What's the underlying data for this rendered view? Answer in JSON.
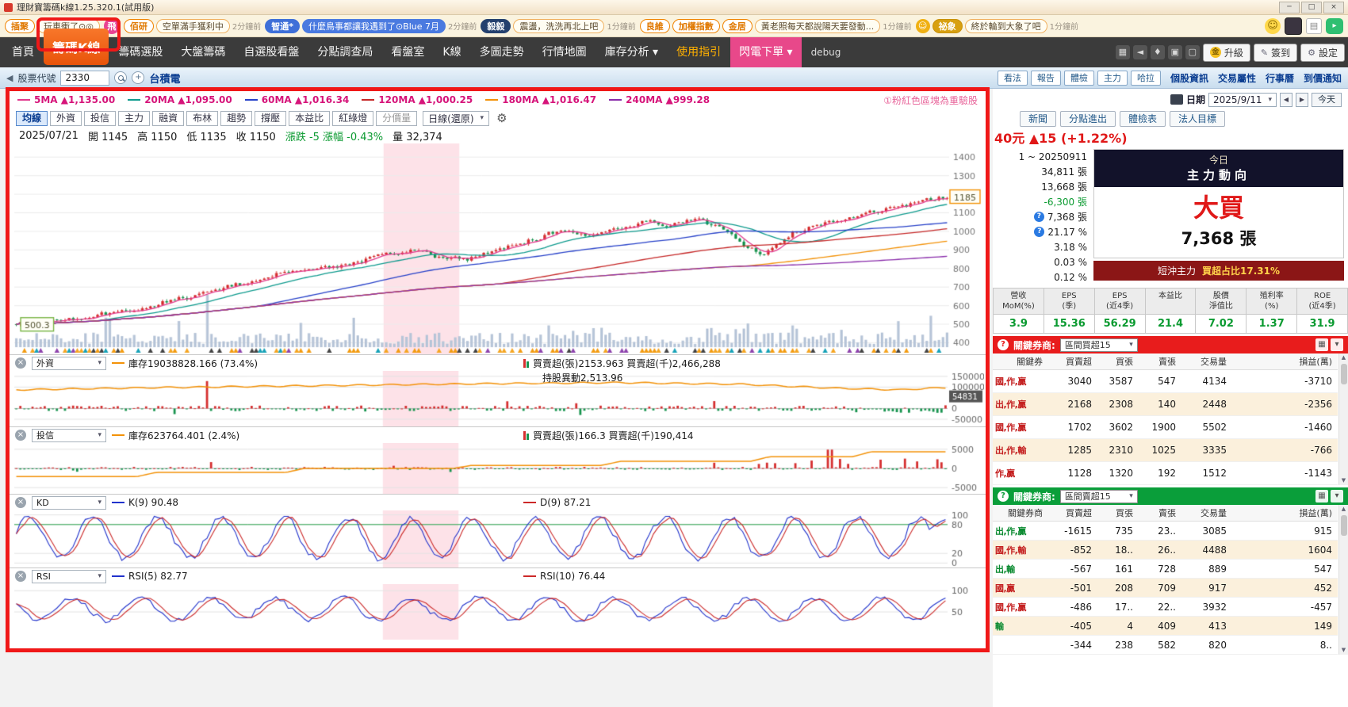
{
  "window": {
    "title": "理財寶籌碼k線1.25.320.1(試用版)",
    "minimize": "─",
    "maximize": "□",
    "close": "×"
  },
  "ticker": {
    "n1": {
      "tag": "插聚",
      "text": "玩車衝了⊙◎"
    },
    "n2": {
      "tag": "飛"
    },
    "n3": {
      "tag": "佰研",
      "text": "空單滿手獲利中",
      "time": "2分鐘前"
    },
    "n4": {
      "tag": "智通*",
      "text": "什麼鳥事都讓我遇到了⊙Blue 7月",
      "time": "2分鐘前"
    },
    "n5": {
      "tag": "毅毅",
      "text": "震盪，洗洗再北上吧",
      "time": "1分鐘前"
    },
    "n6": {
      "tag": "良維",
      "tag2": "加權指數",
      "tag3": "金居",
      "text": "黃老照每天都說陽天要發動...",
      "time": "1分鐘前"
    },
    "n7": {
      "icon": "☺",
      "tag": "祕象",
      "text": "終於輪到大象了吧",
      "time": "1分鐘前"
    }
  },
  "menu": {
    "items": [
      {
        "label": "首頁",
        "cls": ""
      },
      {
        "label": "籌碼K線",
        "cls": "active"
      },
      {
        "label": "籌碼選股",
        "cls": ""
      },
      {
        "label": "大盤籌碼",
        "cls": ""
      },
      {
        "label": "自選股看盤",
        "cls": ""
      },
      {
        "label": "分點調查局",
        "cls": ""
      },
      {
        "label": "看盤室",
        "cls": ""
      },
      {
        "label": "K線",
        "cls": ""
      },
      {
        "label": "多圖走勢",
        "cls": ""
      },
      {
        "label": "行情地圖",
        "cls": ""
      },
      {
        "label": "庫存分析 ▾",
        "cls": ""
      },
      {
        "label": "使用指引",
        "cls": "guide"
      },
      {
        "label": "閃電下單 ▾",
        "cls": "flash"
      },
      {
        "label": "debug",
        "cls": "debug"
      }
    ],
    "coin": "金",
    "upgrade": "升級",
    "checkin": "簽到",
    "settings": "設定"
  },
  "subbar": {
    "stock_label": "股票代號",
    "stock_code": "2330",
    "stock_name": "台積電",
    "buttons": [
      "看法",
      "報告",
      "體檢",
      "主力",
      "哈拉"
    ],
    "links": [
      "個股資訊",
      "交易屬性",
      "行事曆",
      "到價通知"
    ]
  },
  "chart": {
    "ma_legend": [
      {
        "label": "5MA ▲1,135.00",
        "line": "#e23a8e"
      },
      {
        "label": "20MA ▲1,095.00",
        "line": "#0f9b8e"
      },
      {
        "label": "60MA ▲1,016.34",
        "line": "#2741c9"
      },
      {
        "label": "120MA ▲1,000.25",
        "line": "#c62828"
      },
      {
        "label": "180MA ▲1,016.47",
        "line": "#f39208"
      },
      {
        "label": "240MA ▲999.28",
        "line": "#8a2dab"
      }
    ],
    "note": "①粉紅色區塊為重驗股",
    "tabs": [
      {
        "label": "均線",
        "cls": "active"
      },
      {
        "label": "外資",
        "cls": ""
      },
      {
        "label": "投信",
        "cls": ""
      },
      {
        "label": "主力",
        "cls": ""
      },
      {
        "label": "融資",
        "cls": ""
      },
      {
        "label": "布林",
        "cls": ""
      },
      {
        "label": "趨勢",
        "cls": ""
      },
      {
        "label": "撐壓",
        "cls": ""
      },
      {
        "label": "本益比",
        "cls": ""
      },
      {
        "label": "紅綠燈",
        "cls": ""
      },
      {
        "label": "分價量",
        "cls": "dim"
      }
    ],
    "period": "日線(還原)",
    "ohlc": {
      "date": "2025/07/21",
      "open": "開 1145",
      "high": "高 1150",
      "low": "低 1135",
      "close": "收 1150",
      "change": "漲跌 -5 漲幅 -0.43%",
      "volume": "量 32,374"
    },
    "y_ticks": [
      1400,
      1300,
      1200,
      1100,
      1000,
      900,
      800,
      700,
      600,
      500,
      400
    ],
    "price_tag": "1185",
    "start_tag": "500.3",
    "band": [
      0.395,
      0.476
    ],
    "price_path": [
      [
        0,
        500
      ],
      [
        0.04,
        520
      ],
      [
        0.08,
        545
      ],
      [
        0.12,
        575
      ],
      [
        0.16,
        620
      ],
      [
        0.2,
        665
      ],
      [
        0.24,
        720
      ],
      [
        0.28,
        770
      ],
      [
        0.32,
        800
      ],
      [
        0.36,
        830
      ],
      [
        0.4,
        880
      ],
      [
        0.43,
        905
      ],
      [
        0.45,
        860
      ],
      [
        0.48,
        845
      ],
      [
        0.52,
        905
      ],
      [
        0.55,
        955
      ],
      [
        0.58,
        1000
      ],
      [
        0.61,
        975
      ],
      [
        0.64,
        1020
      ],
      [
        0.67,
        1050
      ],
      [
        0.7,
        1035
      ],
      [
        0.73,
        1060
      ],
      [
        0.76,
        1000
      ],
      [
        0.78,
        905
      ],
      [
        0.8,
        880
      ],
      [
        0.83,
        990
      ],
      [
        0.86,
        1040
      ],
      [
        0.89,
        1075
      ],
      [
        0.92,
        1105
      ],
      [
        0.95,
        1140
      ],
      [
        0.98,
        1170
      ],
      [
        1,
        1185
      ]
    ],
    "panels": {
      "foreign": {
        "name": "外資",
        "inv": "庫存19038828.166 (73.4%)",
        "net": "買賣超(張)2153.963 買賣超(千)2,466,288",
        "shift": "持股異動2,513.96",
        "ticks": [
          [
            "150000",
            150000
          ],
          [
            "100000",
            100000
          ],
          [
            "0",
            0
          ],
          [
            "-50000",
            -50000
          ]
        ],
        "tag": "54831",
        "tag_value": 54831
      },
      "trust": {
        "name": "投信",
        "inv": "庫存623764.401 (2.4%)",
        "net": "買賣超(張)166.3 買賣超(千)190,414",
        "ticks": [
          [
            "5000",
            5000
          ],
          [
            "0",
            0
          ],
          [
            "-5000",
            -5000
          ]
        ]
      },
      "kd": {
        "name": "KD",
        "k": "K(9) 90.48",
        "d": "D(9) 87.21",
        "ticks": [
          [
            "100",
            100
          ],
          [
            "80",
            80
          ],
          [
            "20",
            20
          ],
          [
            "0",
            0
          ]
        ]
      },
      "rsi": {
        "name": "RSI",
        "r1": "RSI(5) 82.77",
        "r2": "RSI(10) 76.44",
        "ticks": [
          [
            "100",
            100
          ],
          [
            "50",
            50
          ]
        ]
      }
    }
  },
  "sidebar": {
    "date_label": "日期",
    "date_value": "2025/9/11",
    "today": "今天",
    "tabs": [
      "新聞",
      "分點進出",
      "體檢表",
      "法人目標"
    ],
    "price": "40元 ▲15 (+1.22%)",
    "info_rows": [
      {
        "value": "1 ~ 20250911",
        "cls": ""
      },
      {
        "value": "34,811 張",
        "cls": ""
      },
      {
        "value": "13,668 張",
        "cls": ""
      },
      {
        "value": "-6,300 張",
        "cls": "green"
      },
      {
        "q": "?",
        "value": "7,368 張",
        "cls": ""
      },
      {
        "q": "?",
        "value": "21.17 %",
        "cls": ""
      },
      {
        "value": "3.18 %",
        "cls": ""
      },
      {
        "value": "0.03 %",
        "cls": ""
      },
      {
        "value": "0.12 %",
        "cls": ""
      }
    ],
    "today_box": {
      "line1": "今日",
      "line2": "主力動向",
      "verdict": "大買",
      "amount": "7,368 張",
      "footer_label": "短沖主力",
      "footer_value": "買超占比17.31%"
    },
    "fin": {
      "cols": [
        {
          "label": "營收\nMoM(%)",
          "value": "3.9"
        },
        {
          "label": "EPS\n(季)",
          "value": "15.36"
        },
        {
          "label": "EPS\n(近4季)",
          "value": "56.29"
        },
        {
          "label": "本益比",
          "value": "21.4"
        },
        {
          "label": "股價\n淨值比",
          "value": "7.02"
        },
        {
          "label": "殖利率\n(%)",
          "value": "1.37"
        },
        {
          "label": "ROE\n(近4季)",
          "value": "31.9"
        }
      ]
    },
    "buy_block": {
      "q": "?",
      "label": "關鍵券商:",
      "select": "區間買超15",
      "headers": [
        "關鍵券",
        "買賣超",
        "買張",
        "賣張",
        "交易量",
        "損益(萬)"
      ],
      "rows": [
        {
          "name": "國,作,贏",
          "nc": "#c42020",
          "v1": "3040",
          "v2": "3587",
          "v3": "547",
          "v4": "4134",
          "v5": "-3710"
        },
        {
          "name": "出,作,贏",
          "nc": "#c42020",
          "v1": "2168",
          "v2": "2308",
          "v3": "140",
          "v4": "2448",
          "v5": "-2356"
        },
        {
          "name": "國,作,贏",
          "nc": "#c42020",
          "v1": "1702",
          "v2": "3602",
          "v3": "1900",
          "v4": "5502",
          "v5": "-1460"
        },
        {
          "name": "出,作,輸",
          "nc": "#c42020",
          "v1": "1285",
          "v2": "2310",
          "v3": "1025",
          "v4": "3335",
          "v5": "-766"
        },
        {
          "name": "作,贏",
          "nc": "#c42020",
          "v1": "1128",
          "v2": "1320",
          "v3": "192",
          "v4": "1512",
          "v5": "-1143"
        }
      ]
    },
    "sell_block": {
      "q": "?",
      "label": "關鍵券商:",
      "select": "區間賣超15",
      "headers": [
        "關鍵券商",
        "買賣超",
        "買張",
        "賣張",
        "交易量",
        "損益(萬)"
      ],
      "rows": [
        {
          "name": "出,作,贏",
          "nc": "#0a8a30",
          "v1": "-1615",
          "v2": "735",
          "v3": "23..",
          "v4": "3085",
          "v5": "915"
        },
        {
          "name": "國,作,輸",
          "nc": "#c42020",
          "v1": "-852",
          "v2": "18..",
          "v3": "26..",
          "v4": "4488",
          "v5": "1604"
        },
        {
          "name": "出,輸",
          "nc": "#0a8a30",
          "v1": "-567",
          "v2": "161",
          "v3": "728",
          "v4": "889",
          "v5": "547"
        },
        {
          "name": "國,贏",
          "nc": "#c42020",
          "v1": "-501",
          "v2": "208",
          "v3": "709",
          "v4": "917",
          "v5": "452"
        },
        {
          "name": "國,作,贏",
          "nc": "#c42020",
          "v1": "-486",
          "v2": "17..",
          "v3": "22..",
          "v4": "3932",
          "v5": "-457"
        },
        {
          "name": "輸",
          "nc": "#0a8a30",
          "v1": "-405",
          "v2": "4",
          "v3": "409",
          "v4": "413",
          "v5": "149"
        },
        {
          "name": "",
          "nc": "#c42020",
          "v1": "-344",
          "v2": "238",
          "v3": "582",
          "v4": "820",
          "v5": "8.."
        }
      ]
    }
  }
}
